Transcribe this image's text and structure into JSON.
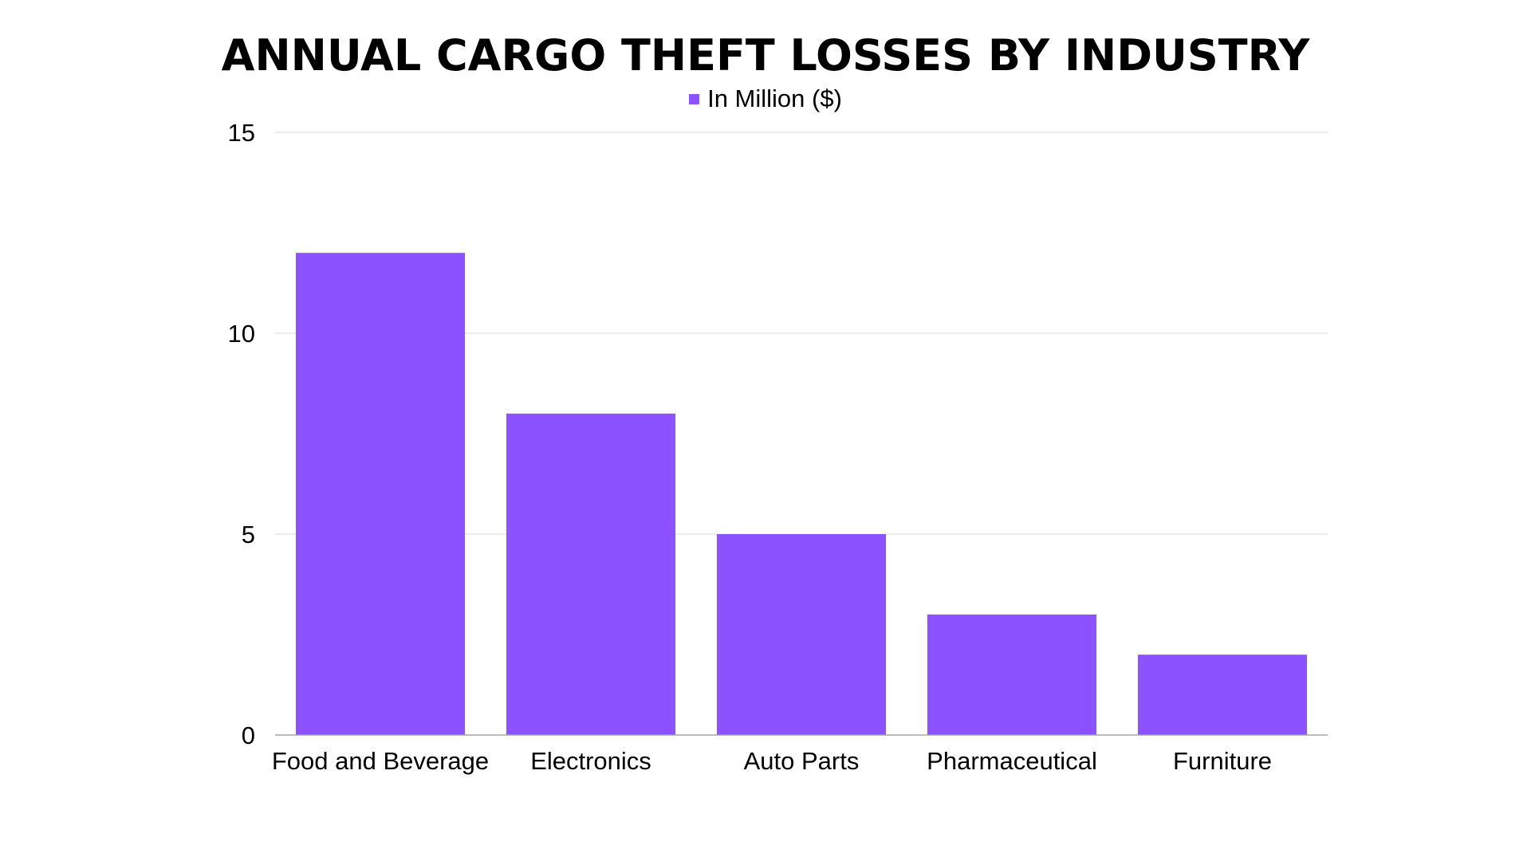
{
  "chart_data": {
    "type": "bar",
    "title": "ANNUAL CARGO THEFT LOSSES BY INDUSTRY",
    "xlabel": "",
    "ylabel": "",
    "categories": [
      "Food and Beverage",
      "Electronics",
      "Auto Parts",
      "Pharmaceutical",
      "Furniture"
    ],
    "series": [
      {
        "name": "In Million ($)",
        "values": [
          12,
          8,
          5,
          3,
          2
        ],
        "color": "#8c52ff"
      }
    ],
    "ylim": [
      0,
      15
    ],
    "yticks": [
      "0",
      "5",
      "10",
      "15"
    ],
    "grid": true,
    "legend": "top-center"
  },
  "colors": {
    "bar": "#8c52ff",
    "grid": "#d9d9d9",
    "axis": "#a6a6a6"
  }
}
